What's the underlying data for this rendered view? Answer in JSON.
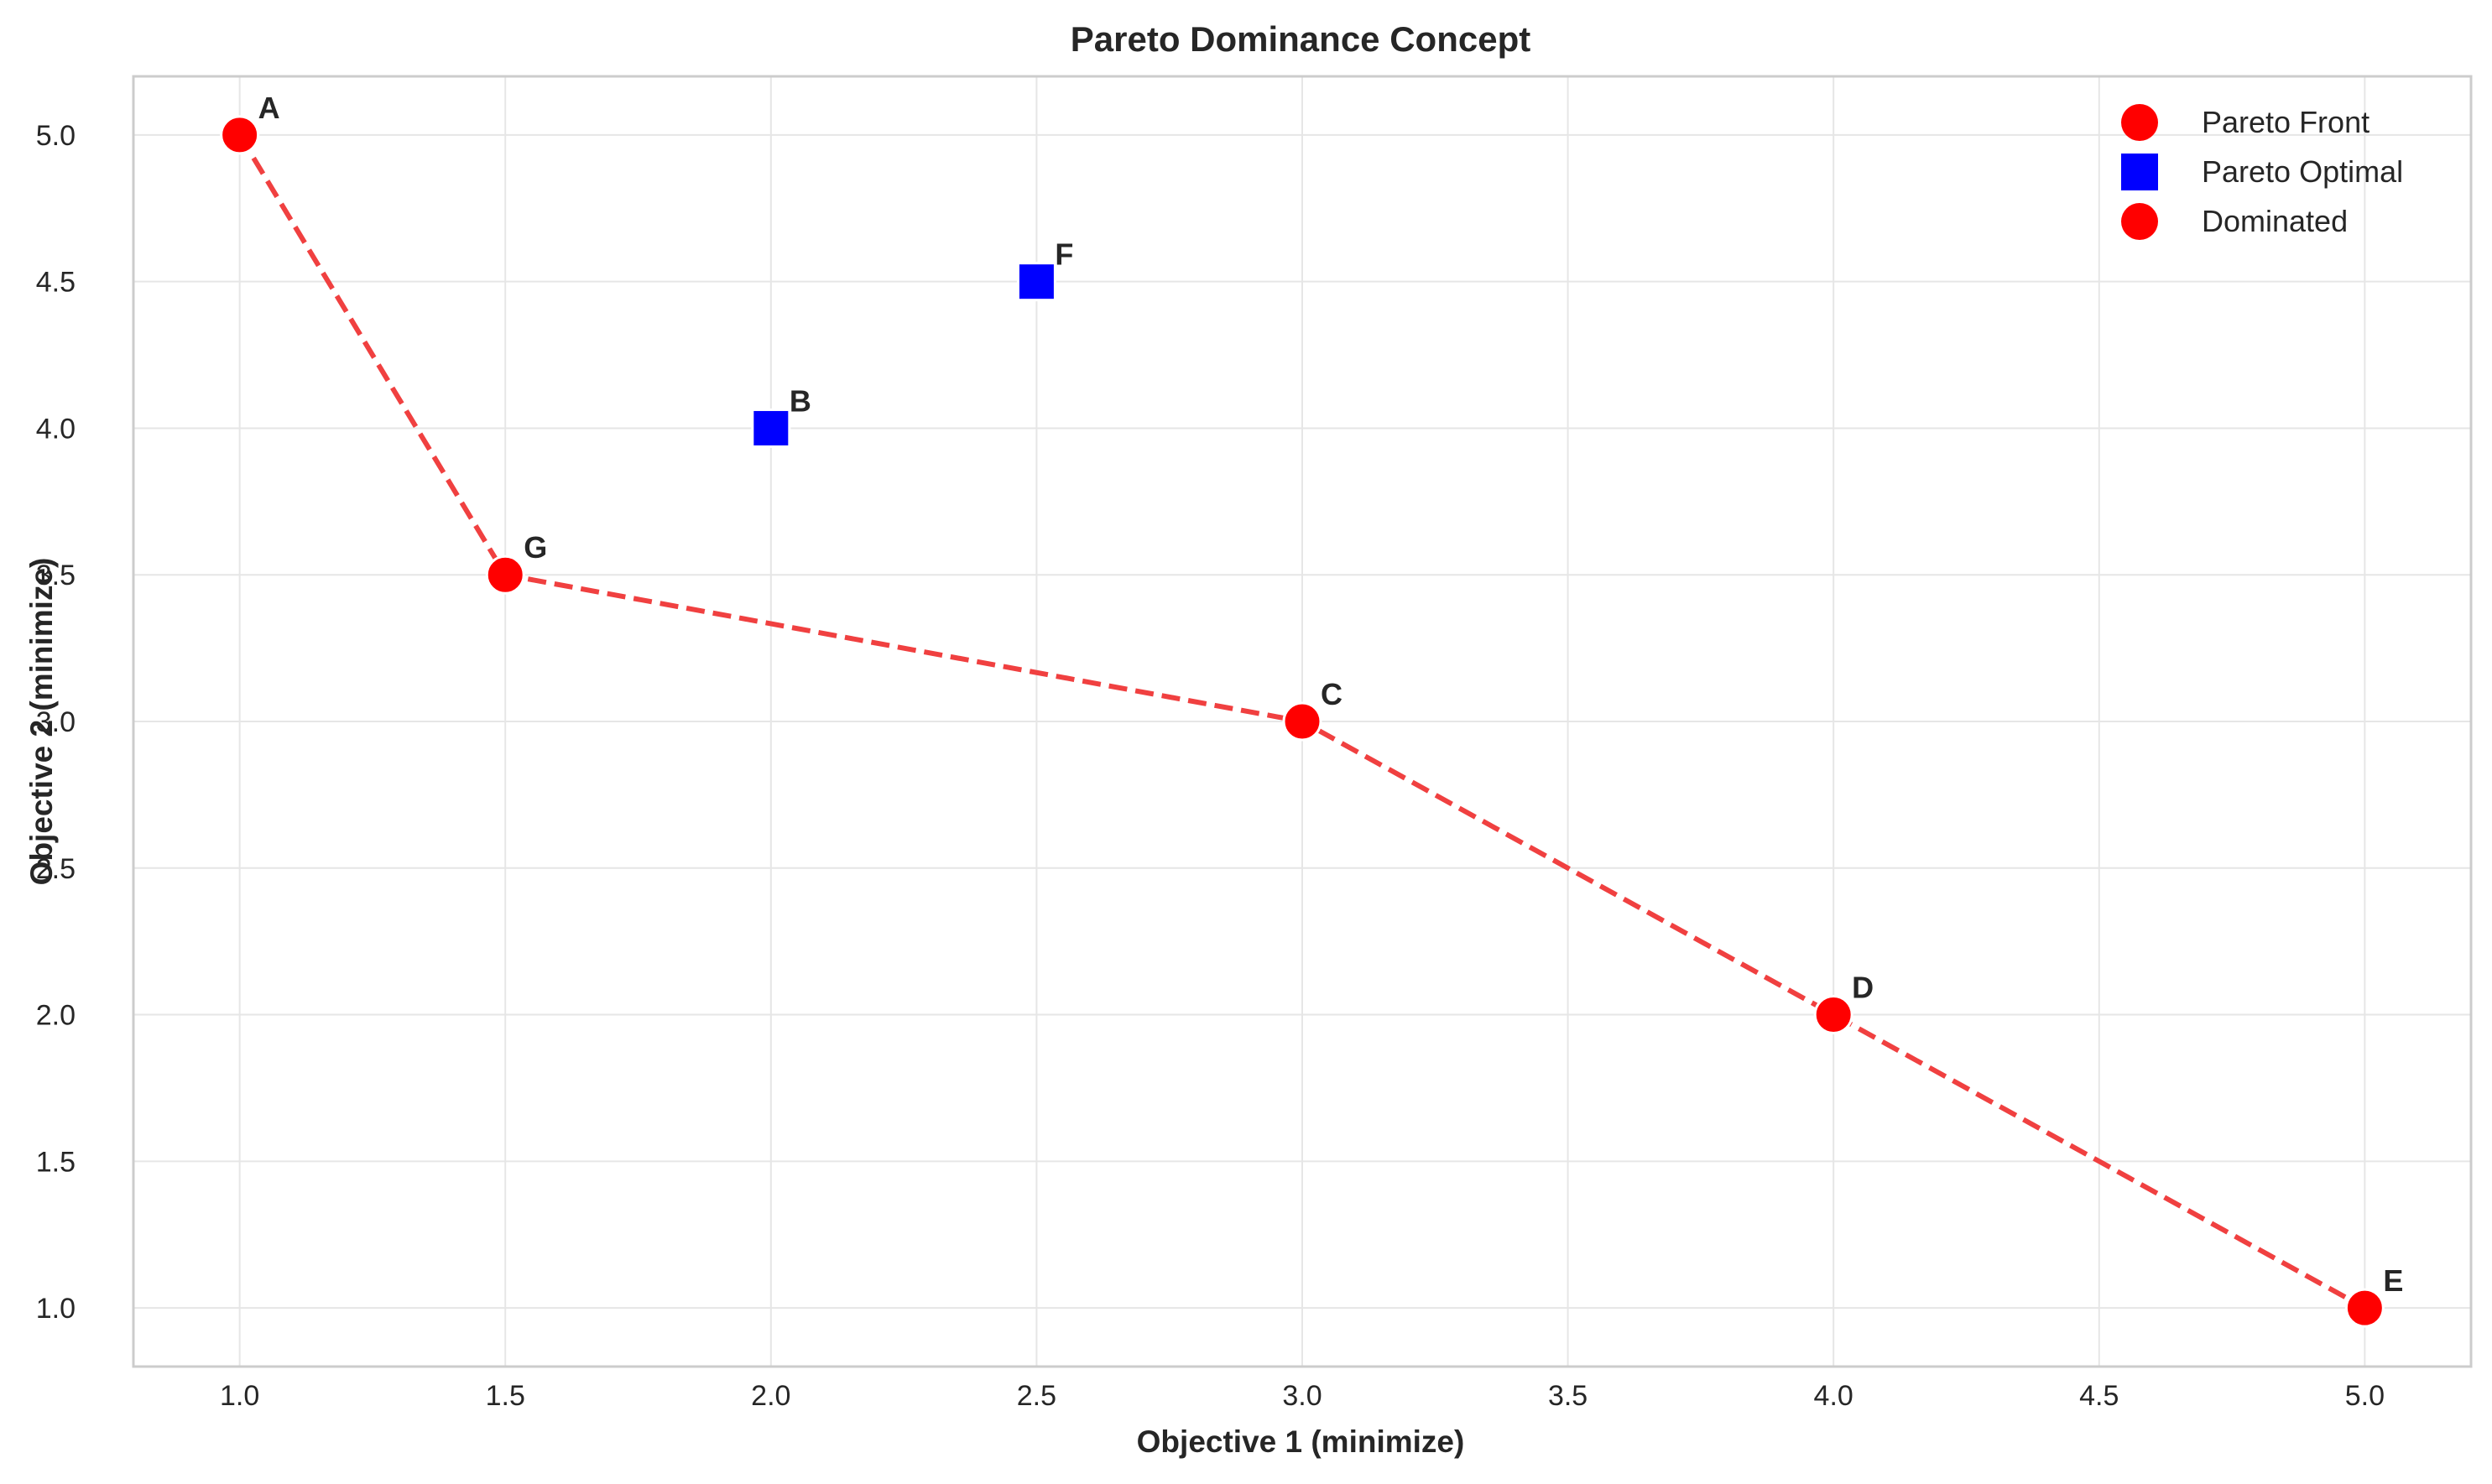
{
  "chart_data": {
    "type": "scatter",
    "title": "Pareto Dominance Concept",
    "xlabel": "Objective 1 (minimize)",
    "ylabel": "Objective 2 (minimize)",
    "xlim": [
      0.8,
      5.2
    ],
    "ylim": [
      0.8,
      5.2
    ],
    "xticks": [
      "1.0",
      "1.5",
      "2.0",
      "2.5",
      "3.0",
      "3.5",
      "4.0",
      "4.5",
      "5.0"
    ],
    "yticks": [
      "1.0",
      "1.5",
      "2.0",
      "2.5",
      "3.0",
      "3.5",
      "4.0",
      "4.5",
      "5.0"
    ],
    "grid": true,
    "legend_position": "top-right",
    "legend": [
      {
        "label": "Pareto Front",
        "marker": "circle",
        "color": "#ff0000"
      },
      {
        "label": "Pareto Optimal",
        "marker": "square",
        "color": "#0000ff"
      },
      {
        "label": "Dominated",
        "marker": "circle",
        "color": "#ff0000"
      }
    ],
    "front_line": {
      "style": "dashed",
      "color": "#f04040",
      "order": [
        "A",
        "G",
        "C",
        "D",
        "E"
      ]
    },
    "points": [
      {
        "label": "A",
        "x": 1.0,
        "y": 5.0,
        "marker": "circle",
        "color": "#ff0000"
      },
      {
        "label": "B",
        "x": 2.0,
        "y": 4.0,
        "marker": "square",
        "color": "#0000ff"
      },
      {
        "label": "C",
        "x": 3.0,
        "y": 3.0,
        "marker": "circle",
        "color": "#ff0000"
      },
      {
        "label": "D",
        "x": 4.0,
        "y": 2.0,
        "marker": "circle",
        "color": "#ff0000"
      },
      {
        "label": "E",
        "x": 5.0,
        "y": 1.0,
        "marker": "circle",
        "color": "#ff0000"
      },
      {
        "label": "F",
        "x": 2.5,
        "y": 4.5,
        "marker": "square",
        "color": "#0000ff"
      },
      {
        "label": "G",
        "x": 1.5,
        "y": 3.5,
        "marker": "circle",
        "color": "#ff0000"
      }
    ]
  }
}
